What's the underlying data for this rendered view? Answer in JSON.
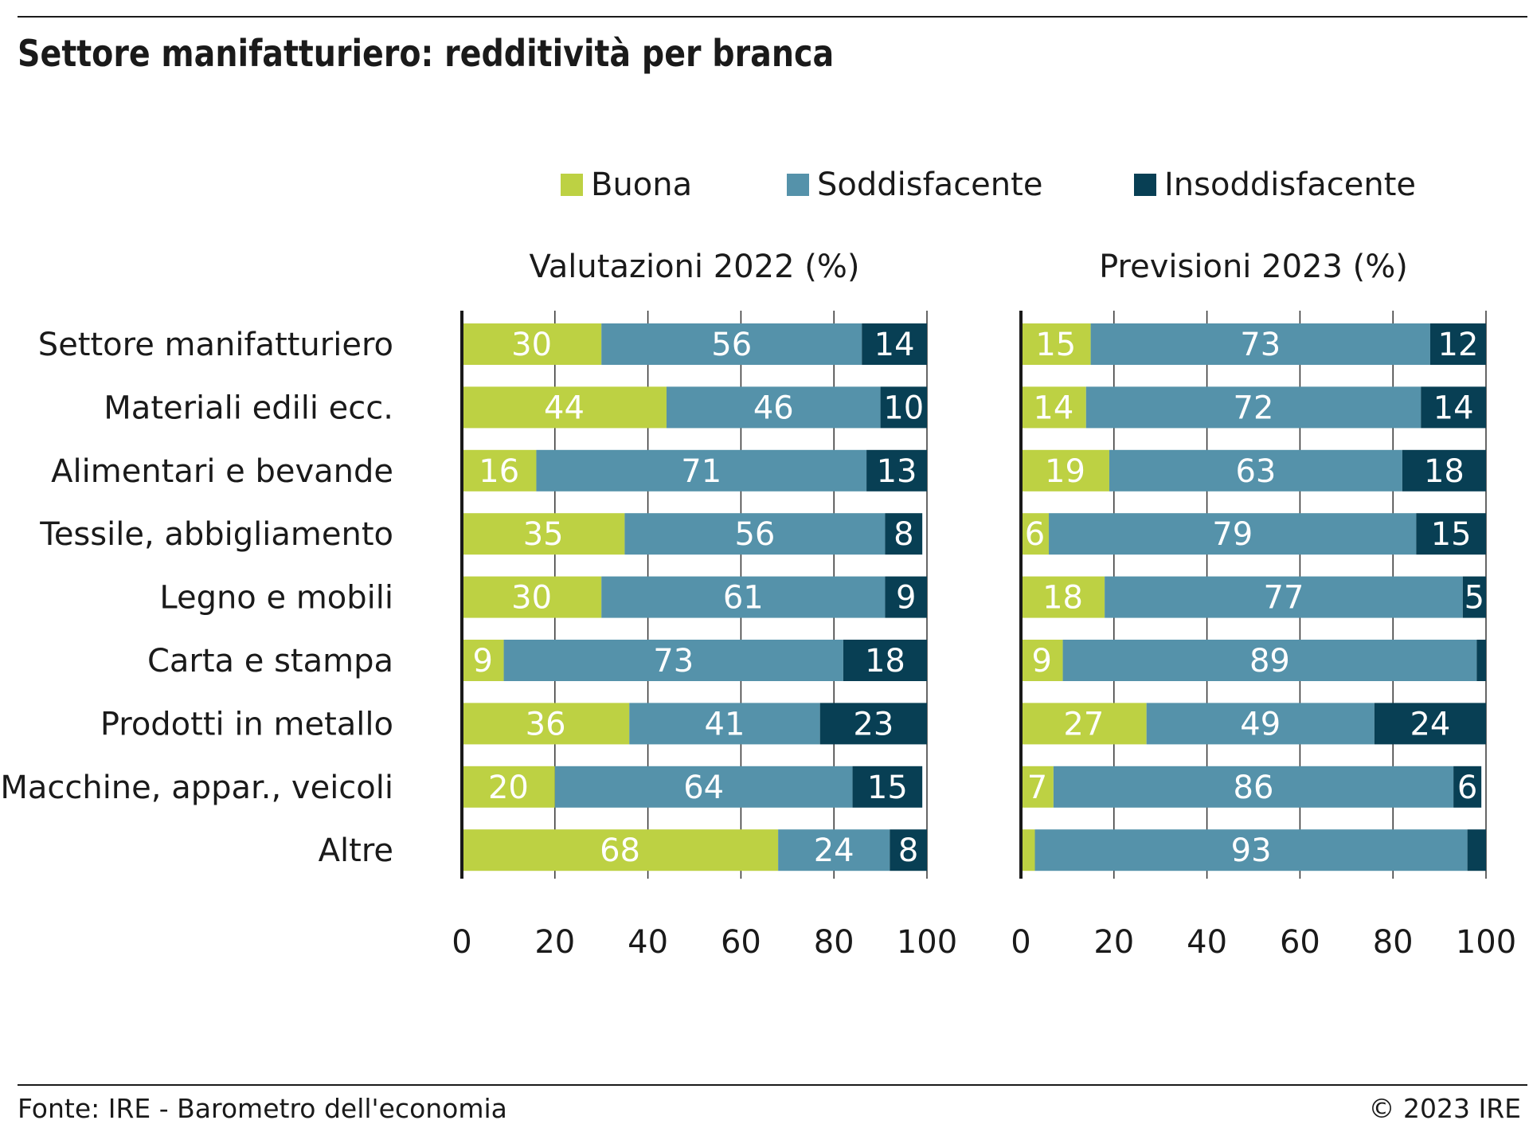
{
  "title": "Settore manifatturiero: redditività per branca",
  "footer": {
    "source": "Fonte: IRE - Barometro dell'economia",
    "copyright": "© 2023 IRE"
  },
  "colors": {
    "buona": "#bdd143",
    "soddisfacente": "#5592aa",
    "insoddisfacente": "#083f54"
  },
  "chart_data": [
    {
      "type": "bar",
      "orientation": "horizontal",
      "stacked": true,
      "title": "Valutazioni 2022 (%)",
      "xlim": [
        0,
        100
      ],
      "xticks": [
        "0",
        "20",
        "40",
        "60",
        "80",
        "100"
      ],
      "grid": true,
      "legend": "top",
      "categories": [
        "Settore manifatturiero",
        "Materiali edili ecc.",
        "Alimentari e bevande",
        "Tessile, abbigliamento",
        "Legno e mobili",
        "Carta e stampa",
        "Prodotti in metallo",
        "Macchine, appar., veicoli",
        "Altre"
      ],
      "series": [
        {
          "name": "Buona",
          "values": [
            30,
            44,
            16,
            35,
            30,
            9,
            36,
            20,
            68
          ]
        },
        {
          "name": "Soddisfacente",
          "values": [
            56,
            46,
            71,
            56,
            61,
            73,
            41,
            64,
            24
          ]
        },
        {
          "name": "Insoddisfacente",
          "values": [
            14,
            10,
            13,
            8,
            9,
            18,
            23,
            15,
            8
          ]
        }
      ],
      "data_labels": [
        [
          "30",
          "56",
          "14"
        ],
        [
          "44",
          "46",
          "10"
        ],
        [
          "16",
          "71",
          "13"
        ],
        [
          "35",
          "56",
          "8"
        ],
        [
          "30",
          "61",
          "9"
        ],
        [
          "9",
          "73",
          "18"
        ],
        [
          "36",
          "41",
          "23"
        ],
        [
          "20",
          "64",
          "15"
        ],
        [
          "68",
          "24",
          "8"
        ]
      ]
    },
    {
      "type": "bar",
      "orientation": "horizontal",
      "stacked": true,
      "title": "Previsioni 2023 (%)",
      "xlim": [
        0,
        100
      ],
      "xticks": [
        "0",
        "20",
        "40",
        "60",
        "80",
        "100"
      ],
      "grid": true,
      "legend": "top",
      "categories": [
        "Settore manifatturiero",
        "Materiali edili ecc.",
        "Alimentari e bevande",
        "Tessile, abbigliamento",
        "Legno e mobili",
        "Carta e stampa",
        "Prodotti in metallo",
        "Macchine, appar., veicoli",
        "Altre"
      ],
      "series": [
        {
          "name": "Buona",
          "values": [
            15,
            14,
            19,
            6,
            18,
            9,
            27,
            7,
            3
          ]
        },
        {
          "name": "Soddisfacente",
          "values": [
            73,
            72,
            63,
            79,
            77,
            89,
            49,
            86,
            93
          ]
        },
        {
          "name": "Insoddisfacente",
          "values": [
            12,
            14,
            18,
            15,
            5,
            2,
            24,
            6,
            4
          ]
        }
      ],
      "data_labels": [
        [
          "15",
          "73",
          "12"
        ],
        [
          "14",
          "72",
          "14"
        ],
        [
          "19",
          "63",
          "18"
        ],
        [
          "6",
          "79",
          "15"
        ],
        [
          "18",
          "77",
          "5"
        ],
        [
          "9",
          "89",
          ""
        ],
        [
          "27",
          "49",
          "24"
        ],
        [
          "7",
          "86",
          "6"
        ],
        [
          "",
          "93",
          ""
        ]
      ]
    }
  ]
}
